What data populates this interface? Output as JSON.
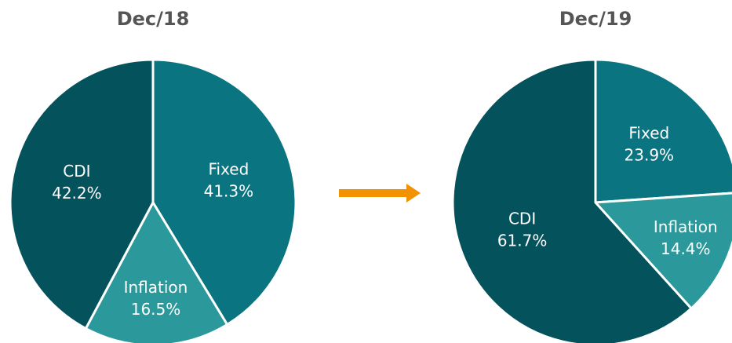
{
  "chart_data": [
    {
      "type": "pie",
      "title": "Dec/18",
      "categories": [
        "Fixed",
        "Inflation",
        "CDI"
      ],
      "values": [
        41.3,
        16.5,
        42.2
      ],
      "value_labels": [
        "41.3%",
        "16.5%",
        "42.2%"
      ],
      "colors": [
        "#0a7480",
        "#2b999b",
        "#04525c"
      ]
    },
    {
      "type": "pie",
      "title": "Dec/19",
      "categories": [
        "Fixed",
        "Inflation",
        "CDI"
      ],
      "values": [
        23.9,
        14.4,
        61.7
      ],
      "value_labels": [
        "23.9%",
        "14.4%",
        "61.7%"
      ],
      "colors": [
        "#0a7480",
        "#2b999b",
        "#04525c"
      ]
    }
  ]
}
